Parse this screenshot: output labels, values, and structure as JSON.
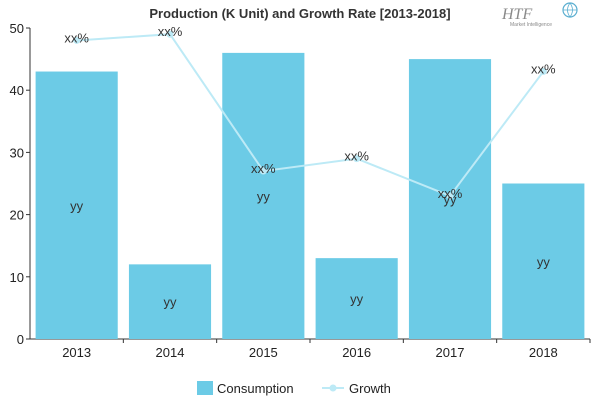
{
  "chart_data": {
    "type": "bar",
    "title": "Production (K Unit) and Growth Rate [2013-2018]",
    "categories": [
      "2013",
      "2014",
      "2015",
      "2016",
      "2017",
      "2018"
    ],
    "ylim": [
      0,
      50
    ],
    "yticks": [
      0,
      10,
      20,
      30,
      40,
      50
    ],
    "series": [
      {
        "name": "Consumption",
        "kind": "bar",
        "color": "#6ccbe6",
        "values": [
          43,
          12,
          46,
          13,
          45,
          25
        ],
        "labels": [
          "yy",
          "yy",
          "yy",
          "yy",
          "yy",
          "yy"
        ]
      },
      {
        "name": "Growth",
        "kind": "line",
        "color": "#bdeaf6",
        "values": [
          48,
          49,
          27,
          29,
          23,
          43
        ],
        "labels": [
          "xx%",
          "xx%",
          "xx%",
          "xx%",
          "xx%",
          "xx%"
        ]
      }
    ],
    "legend": "bottom-center",
    "grid": false
  },
  "logo": {
    "text": "HTF",
    "subtext": "Market Intelligence"
  }
}
